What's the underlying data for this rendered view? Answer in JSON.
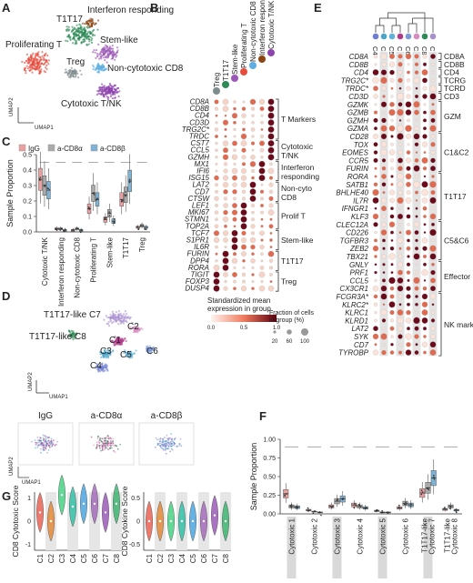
{
  "panel_letters": [
    "A",
    "B",
    "C",
    "D",
    "E",
    "F",
    "G"
  ],
  "colors": {
    "cytotoxic_t_nk": "#8e44ad",
    "proliferating_t": "#e74c3c",
    "t1t17": "#2e8b57",
    "treg": "#7f8c8d",
    "stem_like": "#9b59b6",
    "interferon": "#8b4513",
    "non_cyto_cd8": "#5dade2",
    "igg": "#e8a0a0",
    "a_cd8a": "#aaaaaa",
    "a_cd8b": "#7fb3d5"
  },
  "panel_a": {
    "labels": [
      "T1T17",
      "Interferon responding",
      "Proliferating T",
      "Stem-like",
      "Treg",
      "Non-cytotoxic CD8",
      "Cytotoxic T/NK"
    ],
    "axis_x": "UMAP1",
    "axis_y": "UMAP2"
  },
  "panel_b": {
    "columns": [
      "Treg",
      "T1T17",
      "Stem-like",
      "Proliferating T",
      "Non-cytotoxic CD8",
      "Interferon responding",
      "Cytotoxic T/NK"
    ],
    "genes": [
      "CD8A",
      "CD8B",
      "CD4",
      "CD3D",
      "TRG2C*",
      "TRDC",
      "CST7",
      "CCL5",
      "GZMH",
      "MX1",
      "IFI6",
      "ISG15",
      "LAT2",
      "CD7",
      "CTSW",
      "LEF1",
      "MKI67",
      "STMN1",
      "TOP2A",
      "TCF7",
      "S1PR1",
      "IL6R",
      "FURIN",
      "DPP4",
      "RORA",
      "TIGIT",
      "FOXP3",
      "DUSP4"
    ],
    "groups": [
      "T Markers",
      "Cytotoxic T/NK",
      "Interferon responding",
      "Non-cyto CD8",
      "Prolif T",
      "Stem-like",
      "T1T17",
      "Treg"
    ]
  },
  "panel_c": {
    "legend": [
      "IgG",
      "a-CD8α",
      "a-CD8β"
    ],
    "ylabel": "Sample Proportion",
    "yticks": [
      "0.0",
      "0.1",
      "0.2",
      "0.3",
      "0.4",
      "0.5"
    ],
    "categories": [
      "Cytotoxic T/NK",
      "Interferon responding",
      "Non-cytotoxic CD8",
      "Proliferating T",
      "Stem-like",
      "T1T17",
      "Treg"
    ]
  },
  "panel_d": {
    "labels": [
      "T1T17-like C7",
      "T1T17-like C8",
      "C1",
      "C2",
      "C3",
      "C4",
      "C5",
      "C6"
    ],
    "small_titles": [
      "IgG",
      "a-CD8α",
      "a-CD8β"
    ],
    "axis_x": "UMAP1",
    "axis_y": "UMAP2"
  },
  "panel_e": {
    "columns": [
      "C4",
      "C3",
      "C5",
      "C1",
      "C6",
      "C2",
      "C8",
      "C7"
    ],
    "genes": [
      "CD8A",
      "CD8B",
      "CD4",
      "TRG2C*",
      "TRDC*",
      "CD3D",
      "GZMK",
      "GZMB",
      "GZMH",
      "GZMA",
      "CD28",
      "TOX",
      "EOMES",
      "CCR5",
      "FURIN",
      "RORA",
      "SATB1",
      "BHLHE40",
      "IL7R",
      "IFNGR1",
      "KLF3",
      "CLEC12A",
      "CD226",
      "TGFBR3",
      "ZEB2",
      "TBX21",
      "GNLY",
      "PRF1",
      "CCL5",
      "CX3CR1",
      "FCGR3A*",
      "KLRC2*",
      "KLRC1",
      "KLRD1",
      "LAT2",
      "SYK",
      "CD7",
      "TYROBP"
    ],
    "groups": [
      "CD8A",
      "CD8B",
      "CD4",
      "TCRG",
      "TCRD",
      "CD3",
      "GZM",
      "C1&C2",
      "T1T17",
      "C5&C6",
      "Effector",
      "NK markers"
    ]
  },
  "legend_b": {
    "title1": "Standardized mean",
    "title2": "expression in group",
    "ticks": [
      "0.0",
      "0.5",
      "1.0"
    ],
    "size_title1": "Fraction of cells",
    "size_title2": "in group (%)",
    "size_ticks": [
      "20",
      "60",
      "100"
    ]
  },
  "panel_f": {
    "ylabel": "Sample Proportion",
    "yticks": [
      "0.00",
      "0.25",
      "0.50",
      "0.75",
      "1.00"
    ],
    "categories": [
      "Cytotoxic 1",
      "Cytotoxic 2",
      "Cytotoxic 3",
      "Cytotoxic 4",
      "Cytotoxic 5",
      "Cytotoxic 6",
      "T1T17-like Cytotoxic 7",
      "T1T17-like Cytotoxic 8"
    ]
  },
  "panel_g": {
    "plots": [
      {
        "ylabel": "CD8 Cytotoxic Score",
        "yticks": [
          "1",
          "0",
          "-1"
        ]
      },
      {
        "ylabel": "CD8 Cytokine Score",
        "yticks": [
          "0.5",
          "0",
          "-0.5"
        ]
      }
    ],
    "categories": [
      "C1",
      "C2",
      "C3",
      "C4",
      "C5",
      "C6",
      "C7",
      "C8"
    ]
  },
  "chart_data": [
    {
      "type": "box",
      "title": "",
      "ylabel": "Sample Proportion",
      "categories": [
        "Cytotoxic T/NK",
        "Interferon responding",
        "Non-cytotoxic CD8",
        "Proliferating T",
        "Stem-like",
        "T1T17",
        "Treg"
      ],
      "series": [
        {
          "name": "IgG",
          "values": [
            0.34,
            0.02,
            0.01,
            0.15,
            0.08,
            0.21,
            0.03
          ]
        },
        {
          "name": "a-CD8α",
          "values": [
            0.3,
            0.02,
            0.02,
            0.25,
            0.12,
            0.24,
            0.04
          ]
        },
        {
          "name": "a-CD8β",
          "values": [
            0.27,
            0.01,
            0.01,
            0.21,
            0.07,
            0.33,
            0.03
          ]
        }
      ],
      "ylim": [
        0,
        0.5
      ]
    },
    {
      "type": "box",
      "title": "",
      "ylabel": "Sample Proportion",
      "categories": [
        "Cytotoxic 1",
        "Cytotoxic 2",
        "Cytotoxic 3",
        "Cytotoxic 4",
        "Cytotoxic 5",
        "Cytotoxic 6",
        "T1T17-like Cytotoxic 7",
        "T1T17-like Cytotoxic 8"
      ],
      "series": [
        {
          "name": "IgG",
          "values": [
            0.27,
            0.05,
            0.1,
            0.12,
            0.04,
            0.08,
            0.28,
            0.06
          ]
        },
        {
          "name": "a-CD8α",
          "values": [
            0.1,
            0.03,
            0.17,
            0.1,
            0.02,
            0.14,
            0.35,
            0.1
          ]
        },
        {
          "name": "a-CD8β",
          "values": [
            0.09,
            0.02,
            0.2,
            0.08,
            0.02,
            0.12,
            0.48,
            0.05
          ]
        }
      ],
      "ylim": [
        0,
        1
      ]
    },
    {
      "type": "violin",
      "title": "",
      "ylabel": "CD8 Cytotoxic Score",
      "categories": [
        "C1",
        "C2",
        "C3",
        "C4",
        "C5",
        "C6",
        "C7",
        "C8"
      ],
      "values": [
        0.3,
        0.0,
        0.9,
        0.5,
        0.6,
        0.6,
        0.3,
        0.6
      ],
      "ylim": [
        -1,
        1
      ]
    },
    {
      "type": "violin",
      "title": "",
      "ylabel": "CD8 Cytokine Score",
      "categories": [
        "C1",
        "C2",
        "C3",
        "C4",
        "C5",
        "C6",
        "C7",
        "C8"
      ],
      "values": [
        0.0,
        0.0,
        0.0,
        0.0,
        0.0,
        0.0,
        0.1,
        0.0
      ],
      "ylim": [
        -0.5,
        0.5
      ]
    }
  ]
}
